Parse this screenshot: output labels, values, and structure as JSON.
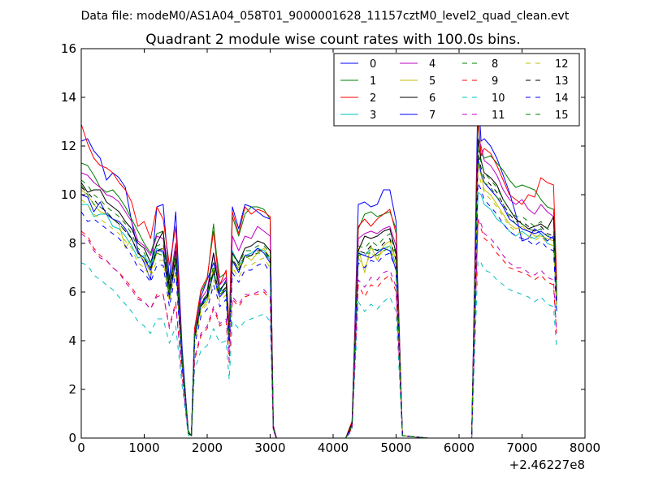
{
  "figure": {
    "suptitle": "Data file: modeM0/AS1A04_058T01_9000001628_11157cztM0_level2_quad_clean.evt"
  },
  "chart_data": {
    "type": "line",
    "title": "Quadrant 2 module wise count rates with 100.0s bins.",
    "xlabel": "",
    "ylabel": "",
    "x_offset_label": "+2.46227e8",
    "xlim": [
      0,
      8000
    ],
    "ylim": [
      0,
      16
    ],
    "x_ticks": [
      0,
      1000,
      2000,
      3000,
      4000,
      5000,
      6000,
      7000,
      8000
    ],
    "y_ticks": [
      0,
      2,
      4,
      6,
      8,
      10,
      12,
      14,
      16
    ],
    "grid": false,
    "legend_position": "top-right",
    "x": [
      0,
      100,
      200,
      300,
      400,
      500,
      600,
      700,
      800,
      900,
      1000,
      1100,
      1200,
      1300,
      1400,
      1500,
      1600,
      1700,
      1750,
      1800,
      1900,
      2000,
      2100,
      2150,
      2200,
      2300,
      2350,
      2400,
      2500,
      2600,
      2700,
      2800,
      2900,
      3000,
      3050,
      3100,
      3500,
      4000,
      4200,
      4300,
      4400,
      4500,
      4600,
      4700,
      4800,
      4900,
      5000,
      5100,
      5500,
      6000,
      6200,
      6300,
      6350,
      6400,
      6500,
      6600,
      6700,
      6800,
      6900,
      7000,
      7100,
      7200,
      7300,
      7400,
      7500,
      7550
    ],
    "series": [
      {
        "name": "0",
        "color": "#0000ff",
        "dash": "solid",
        "values": [
          12.2,
          12.3,
          11.8,
          11.5,
          10.6,
          10.9,
          10.7,
          10.3,
          8.9,
          7.7,
          7.2,
          6.5,
          9.5,
          9.6,
          6.5,
          9.3,
          3.8,
          0.2,
          0.1,
          4.5,
          5.8,
          6.5,
          7.2,
          6.8,
          6.0,
          6.5,
          4.3,
          9.5,
          8.6,
          9.6,
          9.5,
          9.3,
          9.1,
          9.0,
          0.5,
          0.0,
          0.0,
          0.0,
          0.0,
          0.6,
          9.6,
          9.7,
          9.5,
          9.6,
          10.2,
          10.2,
          8.9,
          0.1,
          0.0,
          0.0,
          0.0,
          14.3,
          12.2,
          12.3,
          12.0,
          11.5,
          10.8,
          10.1,
          9.2,
          8.1,
          8.2,
          8.6,
          8.4,
          8.1,
          8.3,
          5.5
        ]
      },
      {
        "name": "1",
        "color": "#008000",
        "dash": "solid",
        "values": [
          11.3,
          11.2,
          10.8,
          10.3,
          10.1,
          10.2,
          9.9,
          9.5,
          9.0,
          8.5,
          8.0,
          7.6,
          8.4,
          8.5,
          6.3,
          8.0,
          3.5,
          0.3,
          0.1,
          4.4,
          6.0,
          6.5,
          8.8,
          7.5,
          6.6,
          6.8,
          4.4,
          9.1,
          8.3,
          9.2,
          9.5,
          9.5,
          9.4,
          9.0,
          0.5,
          0.0,
          0.0,
          0.0,
          0.0,
          0.6,
          8.6,
          9.2,
          9.3,
          9.1,
          9.2,
          9.3,
          8.6,
          0.1,
          0.0,
          0.0,
          0.0,
          13.0,
          11.7,
          11.5,
          11.6,
          11.3,
          11.0,
          10.6,
          10.3,
          10.4,
          10.3,
          10.2,
          9.8,
          9.5,
          9.4,
          6.2
        ]
      },
      {
        "name": "2",
        "color": "#ff0000",
        "dash": "solid",
        "values": [
          12.9,
          12.1,
          11.5,
          11.2,
          11.1,
          10.9,
          10.5,
          10.2,
          9.7,
          8.7,
          8.9,
          8.2,
          9.5,
          9.0,
          7.1,
          8.7,
          3.4,
          0.2,
          0.1,
          4.5,
          6.1,
          6.6,
          8.5,
          7.3,
          6.3,
          6.9,
          4.6,
          9.3,
          8.4,
          9.5,
          9.2,
          9.4,
          9.3,
          9.1,
          0.5,
          0.0,
          0.0,
          0.0,
          0.0,
          0.7,
          8.7,
          9.0,
          8.7,
          9.0,
          9.2,
          9.4,
          8.4,
          0.1,
          0.0,
          0.0,
          0.0,
          13.3,
          11.6,
          11.9,
          11.7,
          11.2,
          10.6,
          10.0,
          9.8,
          9.6,
          10.0,
          9.9,
          10.7,
          10.5,
          10.4,
          6.5
        ]
      },
      {
        "name": "3",
        "color": "#00bfbf",
        "dash": "solid",
        "values": [
          9.6,
          9.6,
          9.1,
          9.2,
          9.2,
          8.7,
          8.6,
          8.3,
          7.9,
          7.4,
          7.5,
          7.1,
          7.8,
          7.6,
          6.2,
          7.5,
          3.4,
          0.2,
          0.1,
          4.3,
          5.5,
          5.7,
          6.8,
          6.4,
          6.0,
          6.2,
          4.2,
          7.7,
          7.1,
          7.5,
          7.6,
          7.8,
          7.7,
          7.3,
          0.4,
          0.0,
          0.0,
          0.0,
          0.0,
          0.5,
          7.6,
          7.5,
          7.8,
          7.7,
          7.8,
          7.9,
          7.1,
          0.1,
          0.0,
          0.0,
          0.0,
          10.1,
          10.0,
          9.6,
          9.4,
          9.0,
          8.8,
          8.5,
          8.3,
          8.5,
          8.3,
          8.2,
          8.4,
          8.0,
          7.9,
          5.2
        ]
      },
      {
        "name": "4",
        "color": "#bf00bf",
        "dash": "solid",
        "values": [
          10.9,
          10.8,
          10.5,
          10.3,
          10.0,
          9.9,
          9.7,
          9.3,
          8.9,
          8.1,
          7.9,
          7.5,
          8.3,
          8.2,
          6.1,
          8.0,
          3.3,
          0.2,
          0.1,
          4.3,
          5.7,
          6.1,
          7.6,
          7.0,
          6.3,
          6.6,
          4.2,
          8.3,
          7.7,
          8.3,
          8.2,
          8.7,
          8.5,
          8.3,
          0.5,
          0.0,
          0.0,
          0.0,
          0.0,
          0.6,
          8.2,
          8.4,
          8.5,
          8.4,
          8.6,
          8.7,
          7.9,
          0.1,
          0.0,
          0.0,
          0.0,
          12.3,
          12.0,
          11.4,
          11.2,
          10.8,
          10.2,
          9.8,
          9.6,
          9.8,
          9.4,
          9.2,
          9.6,
          9.3,
          9.1,
          6.0
        ]
      },
      {
        "name": "5",
        "color": "#bfbf00",
        "dash": "solid",
        "values": [
          10.2,
          10.0,
          9.6,
          9.3,
          9.2,
          9.0,
          8.8,
          7.8,
          8.2,
          7.6,
          7.3,
          6.8,
          7.6,
          7.8,
          5.9,
          7.5,
          3.2,
          0.2,
          0.1,
          4.1,
          5.3,
          5.6,
          7.0,
          6.4,
          5.9,
          6.2,
          4.0,
          7.3,
          7.0,
          7.5,
          7.3,
          7.6,
          7.8,
          7.4,
          0.4,
          0.0,
          0.0,
          0.0,
          0.0,
          0.5,
          7.8,
          6.8,
          7.9,
          7.3,
          7.9,
          8.1,
          7.3,
          0.1,
          0.0,
          0.0,
          0.0,
          11.2,
          10.8,
          10.2,
          10.0,
          9.6,
          9.2,
          8.8,
          8.6,
          8.7,
          8.5,
          8.3,
          8.3,
          8.2,
          8.1,
          5.6
        ]
      },
      {
        "name": "6",
        "color": "#000000",
        "dash": "solid",
        "values": [
          10.5,
          10.1,
          10.2,
          10.2,
          9.7,
          9.5,
          9.3,
          8.9,
          8.6,
          8.0,
          7.8,
          7.2,
          8.0,
          8.5,
          6.1,
          7.7,
          3.3,
          0.2,
          0.1,
          4.2,
          5.5,
          5.9,
          7.6,
          6.7,
          6.1,
          6.4,
          4.1,
          7.6,
          7.2,
          7.8,
          7.9,
          8.1,
          8.0,
          7.7,
          0.4,
          0.0,
          0.0,
          0.0,
          0.0,
          0.6,
          7.7,
          8.3,
          8.2,
          8.3,
          8.5,
          8.6,
          7.6,
          0.1,
          0.0,
          0.0,
          0.0,
          12.3,
          11.4,
          10.9,
          10.7,
          10.4,
          9.8,
          9.4,
          9.0,
          8.8,
          8.6,
          8.7,
          8.8,
          8.6,
          9.1,
          5.8
        ]
      },
      {
        "name": "7",
        "color": "#0000ff",
        "dash": "solid",
        "values": [
          10.0,
          9.9,
          9.3,
          9.7,
          9.2,
          9.0,
          8.9,
          8.6,
          8.2,
          7.6,
          7.4,
          6.9,
          7.7,
          7.7,
          5.7,
          7.3,
          3.3,
          0.2,
          0.1,
          4.1,
          5.5,
          5.8,
          6.8,
          6.2,
          5.8,
          6.1,
          4.0,
          7.3,
          6.8,
          7.5,
          7.5,
          7.8,
          7.6,
          7.2,
          0.4,
          0.0,
          0.0,
          0.0,
          0.0,
          0.5,
          7.6,
          7.5,
          7.4,
          7.6,
          7.8,
          7.7,
          6.9,
          0.1,
          0.0,
          0.0,
          0.0,
          11.5,
          10.9,
          10.5,
          10.2,
          9.9,
          9.5,
          9.0,
          8.8,
          8.6,
          8.5,
          8.4,
          8.5,
          8.3,
          8.2,
          5.5
        ]
      },
      {
        "name": "8",
        "color": "#008000",
        "dash": "dashed",
        "values": [
          10.4,
          10.0,
          9.6,
          9.5,
          9.3,
          9.0,
          8.8,
          8.5,
          8.2,
          7.6,
          7.4,
          7.0,
          7.6,
          7.5,
          5.8,
          7.2,
          3.2,
          0.2,
          0.1,
          4.1,
          5.4,
          5.7,
          6.8,
          6.3,
          5.9,
          6.1,
          4.0,
          7.3,
          6.9,
          7.4,
          7.5,
          7.6,
          7.6,
          7.3,
          0.4,
          0.0,
          0.0,
          0.0,
          0.0,
          0.5,
          7.5,
          7.6,
          7.6,
          7.5,
          7.7,
          7.8,
          7.1,
          0.1,
          0.0,
          0.0,
          0.0,
          11.4,
          10.9,
          10.5,
          10.3,
          9.9,
          9.6,
          9.1,
          8.8,
          8.8,
          8.6,
          8.5,
          8.6,
          8.3,
          8.3,
          5.6
        ]
      },
      {
        "name": "9",
        "color": "#ff0000",
        "dash": "dashed",
        "values": [
          8.5,
          8.3,
          7.8,
          7.5,
          7.3,
          7.0,
          6.8,
          6.5,
          6.2,
          5.8,
          5.6,
          5.3,
          5.9,
          5.9,
          4.6,
          5.6,
          2.6,
          0.2,
          0.1,
          3.2,
          4.2,
          4.5,
          5.3,
          5.0,
          4.6,
          4.8,
          3.1,
          5.7,
          5.4,
          5.8,
          5.9,
          5.9,
          6.0,
          5.7,
          0.3,
          0.0,
          0.0,
          0.0,
          0.0,
          0.4,
          6.3,
          5.8,
          6.3,
          6.2,
          6.5,
          6.7,
          6.0,
          0.1,
          0.0,
          0.0,
          0.0,
          9.0,
          8.6,
          8.2,
          8.0,
          7.6,
          7.3,
          7.0,
          6.9,
          6.8,
          6.7,
          6.5,
          6.7,
          6.4,
          6.3,
          4.2
        ]
      },
      {
        "name": "10",
        "color": "#00bfbf",
        "dash": "dashed",
        "values": [
          7.2,
          7.1,
          6.7,
          6.5,
          6.3,
          6.1,
          5.8,
          5.5,
          5.2,
          4.8,
          4.6,
          4.3,
          4.9,
          4.9,
          3.9,
          4.6,
          2.2,
          0.1,
          0.1,
          2.8,
          3.6,
          3.8,
          4.5,
          4.2,
          3.9,
          4.0,
          2.4,
          4.8,
          4.5,
          4.8,
          4.9,
          5.0,
          5.1,
          4.8,
          0.3,
          0.0,
          0.0,
          0.0,
          0.0,
          0.3,
          5.6,
          5.2,
          5.5,
          5.3,
          5.6,
          5.8,
          5.2,
          0.1,
          0.0,
          0.0,
          0.0,
          7.3,
          7.2,
          6.9,
          6.8,
          6.5,
          6.3,
          6.1,
          6.0,
          5.9,
          5.8,
          5.6,
          5.8,
          5.5,
          5.4,
          3.7
        ]
      },
      {
        "name": "11",
        "color": "#bf00bf",
        "dash": "dashed",
        "values": [
          8.4,
          8.2,
          7.7,
          7.4,
          7.3,
          7.0,
          6.8,
          6.4,
          6.1,
          5.7,
          5.6,
          5.3,
          5.8,
          5.9,
          4.5,
          5.5,
          2.6,
          0.2,
          0.1,
          3.3,
          4.3,
          4.6,
          5.4,
          5.1,
          4.7,
          4.9,
          3.2,
          5.8,
          5.5,
          5.9,
          5.9,
          6.0,
          6.1,
          5.8,
          0.3,
          0.0,
          0.0,
          0.0,
          0.0,
          0.4,
          6.5,
          6.2,
          6.6,
          6.5,
          6.8,
          6.9,
          6.2,
          0.1,
          0.0,
          0.0,
          0.0,
          9.0,
          8.8,
          8.4,
          8.2,
          7.9,
          7.5,
          7.2,
          7.0,
          7.0,
          6.8,
          6.7,
          6.9,
          6.6,
          6.5,
          4.3
        ]
      },
      {
        "name": "12",
        "color": "#bfbf00",
        "dash": "dashed",
        "values": [
          9.8,
          9.6,
          9.2,
          9.0,
          8.8,
          8.6,
          8.4,
          8.1,
          7.8,
          7.2,
          7.0,
          6.6,
          7.3,
          7.3,
          5.6,
          7.0,
          3.1,
          0.2,
          0.1,
          3.9,
          5.2,
          5.5,
          6.5,
          6.1,
          5.6,
          5.9,
          3.8,
          7.0,
          6.6,
          7.1,
          7.1,
          7.3,
          7.4,
          7.0,
          0.4,
          0.0,
          0.0,
          0.0,
          0.0,
          0.5,
          7.4,
          7.0,
          7.6,
          7.4,
          7.7,
          7.9,
          7.1,
          0.1,
          0.0,
          0.0,
          0.0,
          10.9,
          10.5,
          10.1,
          9.8,
          9.5,
          9.1,
          8.7,
          8.5,
          8.4,
          8.3,
          8.1,
          8.3,
          8.0,
          7.9,
          5.4
        ]
      },
      {
        "name": "13",
        "color": "#000000",
        "dash": "dashed",
        "values": [
          10.3,
          10.1,
          9.8,
          9.5,
          9.3,
          9.0,
          8.8,
          8.5,
          8.2,
          7.6,
          7.4,
          7.0,
          7.7,
          7.8,
          5.9,
          7.4,
          3.3,
          0.2,
          0.1,
          4.1,
          5.4,
          5.8,
          6.9,
          6.4,
          5.9,
          6.2,
          4.0,
          7.4,
          6.9,
          7.5,
          7.5,
          7.7,
          7.7,
          7.4,
          0.4,
          0.0,
          0.0,
          0.0,
          0.0,
          0.5,
          7.7,
          7.6,
          7.9,
          7.7,
          8.0,
          8.2,
          7.3,
          0.1,
          0.0,
          0.0,
          0.0,
          11.7,
          11.1,
          10.7,
          10.4,
          10.1,
          9.6,
          9.2,
          8.9,
          8.9,
          8.7,
          8.5,
          8.7,
          8.4,
          8.3,
          5.7
        ]
      },
      {
        "name": "14",
        "color": "#0000ff",
        "dash": "dashed",
        "values": [
          9.3,
          8.9,
          9.0,
          8.8,
          8.6,
          8.4,
          8.2,
          7.9,
          7.5,
          7.0,
          6.8,
          6.4,
          7.1,
          7.1,
          5.4,
          6.8,
          3.0,
          0.2,
          0.1,
          3.8,
          5.0,
          5.3,
          6.3,
          5.9,
          5.4,
          5.7,
          3.7,
          6.8,
          6.4,
          6.9,
          6.9,
          7.1,
          7.2,
          6.8,
          0.4,
          0.0,
          0.0,
          0.0,
          0.0,
          0.5,
          7.2,
          7.0,
          7.3,
          7.2,
          7.5,
          7.6,
          6.9,
          0.1,
          0.0,
          0.0,
          0.0,
          10.5,
          10.2,
          9.8,
          9.5,
          9.2,
          8.8,
          8.5,
          8.3,
          8.2,
          8.1,
          7.9,
          8.1,
          7.8,
          7.7,
          5.2
        ]
      },
      {
        "name": "15",
        "color": "#008000",
        "dash": "dashed",
        "values": [
          10.6,
          10.4,
          10.0,
          9.8,
          9.5,
          9.3,
          9.1,
          8.8,
          8.4,
          7.8,
          7.6,
          7.2,
          7.9,
          8.0,
          6.0,
          7.6,
          3.4,
          0.2,
          0.1,
          4.2,
          5.6,
          5.9,
          7.1,
          6.6,
          6.1,
          6.4,
          4.1,
          7.6,
          7.1,
          7.7,
          7.7,
          7.9,
          7.9,
          7.6,
          0.4,
          0.0,
          0.0,
          0.0,
          0.0,
          0.5,
          7.9,
          7.8,
          8.1,
          7.9,
          8.2,
          8.4,
          7.5,
          0.1,
          0.0,
          0.0,
          0.0,
          11.9,
          11.3,
          10.9,
          10.6,
          10.3,
          9.8,
          9.4,
          9.1,
          9.1,
          8.9,
          8.7,
          8.9,
          8.6,
          8.5,
          5.9
        ]
      }
    ]
  }
}
